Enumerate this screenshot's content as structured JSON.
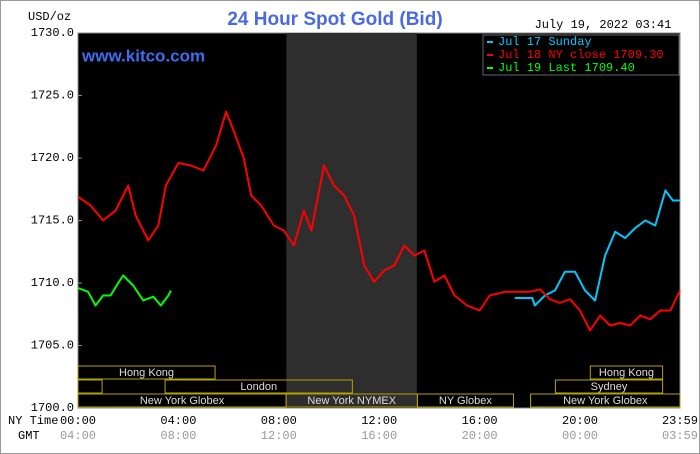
{
  "chart_data": {
    "type": "line",
    "title": "24 Hour Spot Gold (Bid)",
    "y_label": "USD/oz",
    "date_label": "July 19, 2022 03:41",
    "watermark": "www.kitco.com",
    "x_label": "NY Time",
    "x2_label": "GMT",
    "xlim": [
      0,
      23.983
    ],
    "ylim": [
      1700,
      1730
    ],
    "xticks": [
      {
        "value": 0,
        "label": "00:00"
      },
      {
        "value": 4,
        "label": "04:00"
      },
      {
        "value": 8,
        "label": "08:00"
      },
      {
        "value": 12,
        "label": "12:00"
      },
      {
        "value": 16,
        "label": "16:00"
      },
      {
        "value": 20,
        "label": "20:00"
      },
      {
        "value": 23.983,
        "label": "23:59"
      }
    ],
    "x2_tick_labels": [
      "04:00",
      "08:00",
      "12:00",
      "16:00",
      "20:00",
      "00:00",
      "03:59"
    ],
    "yticks": [
      {
        "value": 1700,
        "label": "1700.0"
      },
      {
        "value": 1705,
        "label": "1705.0"
      },
      {
        "value": 1710,
        "label": "1710.0"
      },
      {
        "value": 1715,
        "label": "1715.0"
      },
      {
        "value": 1720,
        "label": "1720.0"
      },
      {
        "value": 1725,
        "label": "1725.0"
      },
      {
        "value": 1730,
        "label": "1730.0"
      }
    ],
    "grid": false,
    "legend": "top-right",
    "highlight_x": [
      8.3,
      13.5
    ],
    "sessions": [
      {
        "label": "Hong Kong",
        "start": 0,
        "end": 5.46,
        "row": 0
      },
      {
        "label": "Hong Kong",
        "start": 20.41,
        "end": 23.29,
        "row": 0
      },
      {
        "label": null,
        "start": 0,
        "end": 0.96,
        "row": 1
      },
      {
        "label": "London",
        "start": 3.47,
        "end": 10.93,
        "row": 1
      },
      {
        "label": "Sydney",
        "start": 19.02,
        "end": 23.29,
        "row": 1
      },
      {
        "label": "New York Globex",
        "start": 0,
        "end": 8.29,
        "row": 2
      },
      {
        "label": "New York NYMEX",
        "start": 8.29,
        "end": 13.52,
        "row": 2
      },
      {
        "label": "NY Globex",
        "start": 13.52,
        "end": 17.35,
        "row": 2
      },
      {
        "label": "New York Globex",
        "start": 18.03,
        "end": 23.983,
        "row": 2
      }
    ],
    "series": [
      {
        "name": "Jul 17 Sunday",
        "color": "#00c8ff",
        "x": [
          17.4,
          18.1,
          18.2,
          18.6,
          19,
          19.4,
          19.8,
          20.2,
          20.6,
          21,
          21.4,
          21.8,
          22.2,
          22.6,
          23,
          23.4,
          23.7,
          23.983
        ],
        "values": [
          1708.8,
          1708.8,
          1708.2,
          1709.0,
          1709.4,
          1710.9,
          1710.9,
          1709.4,
          1708.6,
          1712.2,
          1714.1,
          1713.6,
          1714.4,
          1715.0,
          1714.6,
          1717.4,
          1716.6,
          1716.6
        ]
      },
      {
        "name": "Jul 18 NY close 1709.30",
        "color": "#ff0000",
        "x": [
          0,
          0.5,
          1,
          1.5,
          2,
          2.3,
          2.8,
          3.2,
          3.5,
          4,
          4.5,
          5,
          5.5,
          5.9,
          6.2,
          6.6,
          6.9,
          7.3,
          7.8,
          8.2,
          8.6,
          9,
          9.3,
          9.8,
          10.2,
          10.6,
          11,
          11.4,
          11.8,
          12.2,
          12.6,
          13,
          13.4,
          13.8,
          14.2,
          14.6,
          15,
          15.5,
          16,
          16.4,
          17,
          18,
          18.4,
          18.8,
          19.2,
          19.6,
          20,
          20.4,
          20.8,
          21.2,
          21.6,
          22,
          22.4,
          22.8,
          23.2,
          23.6,
          23.983
        ],
        "values": [
          1716.9,
          1716.2,
          1715.0,
          1715.8,
          1717.8,
          1715.4,
          1713.4,
          1714.6,
          1717.8,
          1719.6,
          1719.4,
          1719.0,
          1721.0,
          1723.7,
          1722.2,
          1720.0,
          1717.0,
          1716.2,
          1714.6,
          1714.2,
          1713.0,
          1715.8,
          1714.2,
          1719.4,
          1717.8,
          1717.0,
          1715.4,
          1711.4,
          1710.1,
          1711.0,
          1711.4,
          1713.0,
          1712.2,
          1712.6,
          1710.1,
          1710.6,
          1709.0,
          1708.2,
          1707.8,
          1709.0,
          1709.3,
          1709.3,
          1709.5,
          1708.7,
          1708.4,
          1708.7,
          1707.8,
          1706.2,
          1707.4,
          1706.6,
          1706.8,
          1706.6,
          1707.4,
          1707.1,
          1707.8,
          1707.8,
          1709.4
        ]
      },
      {
        "name": "Jul 19 Last 1709.40",
        "color": "#00ff00",
        "x": [
          0,
          0.4,
          0.7,
          1,
          1.3,
          1.6,
          1.8,
          2.2,
          2.6,
          3,
          3.3,
          3.6,
          3.7
        ],
        "values": [
          1709.6,
          1709.3,
          1708.2,
          1709.0,
          1709.0,
          1710.0,
          1710.6,
          1709.8,
          1708.6,
          1708.9,
          1708.2,
          1709.0,
          1709.4
        ]
      }
    ]
  }
}
